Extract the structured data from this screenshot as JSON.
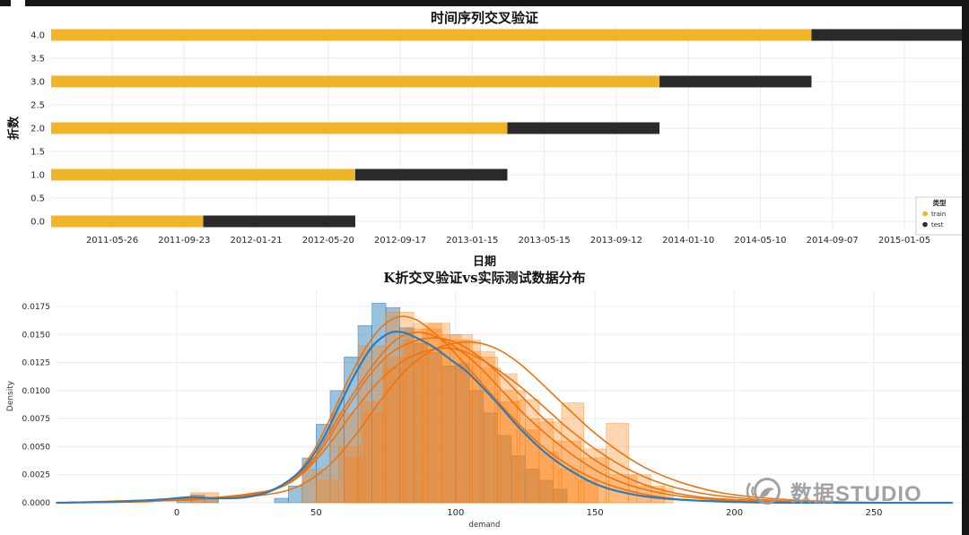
{
  "page": {
    "background": "#ffffff",
    "frame_color": "#161616"
  },
  "watermark": {
    "text": "数据STUDIO",
    "color": "#9b9b9b",
    "logo": "bird-in-circle-icon"
  },
  "chart_data": [
    {
      "id": "tscv",
      "type": "bar",
      "variant": "horizontal-timeline",
      "title": "时间序列交叉验证",
      "xlabel": "日期",
      "ylabel": "折数",
      "grid": true,
      "xticks": [
        "2011-05-26",
        "2011-09-23",
        "2012-01-21",
        "2012-05-20",
        "2012-09-17",
        "2013-01-15",
        "2013-05-15",
        "2013-09-12",
        "2014-01-10",
        "2014-05-10",
        "2014-09-07",
        "2015-01-05"
      ],
      "yticks": [
        4.0,
        3.5,
        3.0,
        2.5,
        2.0,
        1.5,
        1.0,
        0.5,
        0.0
      ],
      "legend": {
        "title": "类型",
        "position": "lower-right",
        "items": [
          {
            "label": "train",
            "color": "#F0B429"
          },
          {
            "label": "test",
            "color": "#2A2A2A"
          }
        ]
      },
      "series": [
        {
          "fold": 0,
          "train": [
            0,
            0.1667
          ],
          "test": [
            0.1667,
            0.3333
          ]
        },
        {
          "fold": 1,
          "train": [
            0,
            0.3333
          ],
          "test": [
            0.3333,
            0.5
          ]
        },
        {
          "fold": 2,
          "train": [
            0,
            0.5
          ],
          "test": [
            0.5,
            0.6667
          ]
        },
        {
          "fold": 3,
          "train": [
            0,
            0.6667
          ],
          "test": [
            0.6667,
            0.8333
          ]
        },
        {
          "fold": 4,
          "train": [
            0,
            0.8333
          ],
          "test": [
            0.8333,
            1.0
          ]
        }
      ]
    },
    {
      "id": "dist",
      "type": "area",
      "variant": "histogram-kde",
      "title": "K折交叉验证vs实际测试数据分布",
      "xlabel": "demand",
      "ylabel": "Density",
      "grid": true,
      "xlim": [
        -43,
        283
      ],
      "ylim": [
        0,
        0.019
      ],
      "xticks": [
        0,
        50,
        100,
        150,
        200,
        250
      ],
      "yticks": [
        0.0,
        0.0025,
        0.005,
        0.0075,
        0.01,
        0.0125,
        0.015,
        0.0175
      ],
      "histograms": [
        {
          "name": "blue",
          "color": "#1f77b4",
          "opacity": 0.45,
          "bin_start": 0,
          "bin_width": 5,
          "heights": [
            0.0004,
            0.0007,
            0.0003,
            0,
            0,
            0,
            0,
            0.0004,
            0.0015,
            0.004,
            0.007,
            0.01,
            0.013,
            0.0158,
            0.0178,
            0.0174,
            0.0156,
            0.0142,
            0.0134,
            0.0122,
            0.0124,
            0.01,
            0.008,
            0.006,
            0.0042,
            0.003,
            0.002,
            0.0012
          ]
        },
        {
          "name": "orange-1",
          "color": "#ff7f0e",
          "opacity": 0.32,
          "bin_start": 45,
          "bin_width": 10,
          "heights": [
            0.003,
            0.008,
            0.014,
            0.017,
            0.016,
            0.0145,
            0.013,
            0.01,
            0.0075,
            0.0055,
            0.004,
            0.0025,
            0.0015
          ]
        },
        {
          "name": "orange-2",
          "color": "#ff7f0e",
          "opacity": 0.32,
          "bin_start": 60,
          "bin_width": 7,
          "heights": [
            0.004,
            0.008,
            0.012,
            0.0145,
            0.0155,
            0.015,
            0.0145,
            0.012,
            0.009,
            0.0065,
            0.0045,
            0.003,
            0.002
          ]
        },
        {
          "name": "orange-3",
          "color": "#ff7f0e",
          "opacity": 0.32,
          "bin_start": 50,
          "bin_width": 8,
          "heights": [
            0.002,
            0.005,
            0.009,
            0.013,
            0.0155,
            0.016,
            0.015,
            0.0135,
            0.0115,
            0.0092,
            0.0072,
            0.0089,
            0.0048,
            0.0071,
            0.0025,
            0.0013
          ]
        },
        {
          "name": "orange-bump",
          "color": "#ff7f0e",
          "opacity": 0.4,
          "bin_start": 5,
          "bin_width": 10,
          "heights": [
            0.0009
          ]
        }
      ],
      "kde": [
        {
          "name": "orange-1",
          "color": "#f0720e",
          "width": 1.6,
          "points": [
            [
              -43,
              0
            ],
            [
              -10,
              0.0001
            ],
            [
              3,
              0.0004
            ],
            [
              13,
              0.0004
            ],
            [
              28,
              0.0007
            ],
            [
              40,
              0.0019
            ],
            [
              48,
              0.0042
            ],
            [
              55,
              0.0075
            ],
            [
              62,
              0.0112
            ],
            [
              68,
              0.0139
            ],
            [
              74,
              0.0158
            ],
            [
              80,
              0.0166
            ],
            [
              86,
              0.0163
            ],
            [
              92,
              0.0152
            ],
            [
              98,
              0.0138
            ],
            [
              105,
              0.0119
            ],
            [
              112,
              0.0099
            ],
            [
              120,
              0.0077
            ],
            [
              128,
              0.0057
            ],
            [
              136,
              0.0041
            ],
            [
              145,
              0.0027
            ],
            [
              155,
              0.0016
            ],
            [
              167,
              0.0008
            ],
            [
              181,
              0.0003
            ],
            [
              202,
              0.0001
            ],
            [
              230,
              0
            ],
            [
              278,
              0
            ]
          ]
        },
        {
          "name": "orange-2",
          "color": "#f0720e",
          "width": 1.6,
          "points": [
            [
              -43,
              0
            ],
            [
              -5,
              0.0002
            ],
            [
              12,
              0.0004
            ],
            [
              28,
              0.0007
            ],
            [
              42,
              0.002
            ],
            [
              52,
              0.0048
            ],
            [
              60,
              0.008
            ],
            [
              68,
              0.011
            ],
            [
              76,
              0.0132
            ],
            [
              84,
              0.0143
            ],
            [
              92,
              0.0147
            ],
            [
              100,
              0.0143
            ],
            [
              108,
              0.0131
            ],
            [
              116,
              0.0114
            ],
            [
              124,
              0.0094
            ],
            [
              132,
              0.0074
            ],
            [
              141,
              0.0055
            ],
            [
              150,
              0.0038
            ],
            [
              161,
              0.0023
            ],
            [
              173,
              0.0012
            ],
            [
              188,
              0.0005
            ],
            [
              207,
              0.0002
            ],
            [
              232,
              0
            ],
            [
              278,
              0
            ]
          ]
        },
        {
          "name": "orange-3",
          "color": "#f0720e",
          "width": 1.6,
          "points": [
            [
              -43,
              0
            ],
            [
              0,
              0.0002
            ],
            [
              14,
              0.0004
            ],
            [
              28,
              0.0006
            ],
            [
              42,
              0.0013
            ],
            [
              54,
              0.0032
            ],
            [
              64,
              0.006
            ],
            [
              73,
              0.0091
            ],
            [
              82,
              0.0118
            ],
            [
              91,
              0.0135
            ],
            [
              99,
              0.0142
            ],
            [
              107,
              0.0143
            ],
            [
              115,
              0.0137
            ],
            [
              123,
              0.0124
            ],
            [
              131,
              0.0106
            ],
            [
              139,
              0.0087
            ],
            [
              149,
              0.0064
            ],
            [
              159,
              0.0045
            ],
            [
              169,
              0.003
            ],
            [
              181,
              0.0018
            ],
            [
              195,
              0.0009
            ],
            [
              212,
              0.0004
            ],
            [
              235,
              0.0001
            ],
            [
              262,
              0
            ],
            [
              278,
              0
            ]
          ]
        },
        {
          "name": "orange-4",
          "color": "#f0720e",
          "width": 1.6,
          "points": [
            [
              -43,
              0
            ],
            [
              -8,
              0.0002
            ],
            [
              10,
              0.0004
            ],
            [
              26,
              0.0008
            ],
            [
              38,
              0.0015
            ],
            [
              48,
              0.0036
            ],
            [
              56,
              0.0068
            ],
            [
              64,
              0.01
            ],
            [
              72,
              0.0128
            ],
            [
              79,
              0.0146
            ],
            [
              86,
              0.0152
            ],
            [
              93,
              0.0148
            ],
            [
              101,
              0.0137
            ],
            [
              109,
              0.012
            ],
            [
              117,
              0.0099
            ],
            [
              125,
              0.0078
            ],
            [
              134,
              0.0058
            ],
            [
              144,
              0.0039
            ],
            [
              154,
              0.0024
            ],
            [
              166,
              0.0013
            ],
            [
              180,
              0.0006
            ],
            [
              198,
              0.0002
            ],
            [
              222,
              0
            ],
            [
              278,
              0
            ]
          ]
        },
        {
          "name": "orange-5",
          "color": "#f0720e",
          "width": 1.6,
          "points": [
            [
              -43,
              0
            ],
            [
              -2,
              0.0003
            ],
            [
              16,
              0.0005
            ],
            [
              32,
              0.001
            ],
            [
              44,
              0.0024
            ],
            [
              54,
              0.005
            ],
            [
              63,
              0.008
            ],
            [
              72,
              0.0107
            ],
            [
              81,
              0.0126
            ],
            [
              89,
              0.0135
            ],
            [
              97,
              0.0138
            ],
            [
              105,
              0.0133
            ],
            [
              113,
              0.0122
            ],
            [
              122,
              0.0106
            ],
            [
              131,
              0.0087
            ],
            [
              140,
              0.0067
            ],
            [
              150,
              0.0048
            ],
            [
              161,
              0.0031
            ],
            [
              173,
              0.0018
            ],
            [
              187,
              0.0009
            ],
            [
              203,
              0.0004
            ],
            [
              225,
              0.0001
            ],
            [
              252,
              0
            ],
            [
              278,
              0
            ]
          ]
        },
        {
          "name": "blue",
          "color": "#2f7bb6",
          "width": 2.2,
          "points": [
            [
              -43,
              0
            ],
            [
              -20,
              0.0001
            ],
            [
              -5,
              0.0003
            ],
            [
              5,
              0.0005
            ],
            [
              14,
              0.0004
            ],
            [
              25,
              0.0005
            ],
            [
              35,
              0.0012
            ],
            [
              45,
              0.003
            ],
            [
              52,
              0.0055
            ],
            [
              58,
              0.0085
            ],
            [
              64,
              0.0115
            ],
            [
              70,
              0.0139
            ],
            [
              76,
              0.0151
            ],
            [
              81,
              0.0152
            ],
            [
              86,
              0.0147
            ],
            [
              92,
              0.0139
            ],
            [
              98,
              0.0128
            ],
            [
              104,
              0.0117
            ],
            [
              110,
              0.0102
            ],
            [
              116,
              0.0086
            ],
            [
              122,
              0.0069
            ],
            [
              128,
              0.0054
            ],
            [
              134,
              0.0041
            ],
            [
              141,
              0.0029
            ],
            [
              149,
              0.0018
            ],
            [
              157,
              0.0011
            ],
            [
              167,
              0.0006
            ],
            [
              179,
              0.0003
            ],
            [
              196,
              0.0001
            ],
            [
              220,
              0
            ],
            [
              278,
              0
            ]
          ]
        }
      ]
    }
  ]
}
